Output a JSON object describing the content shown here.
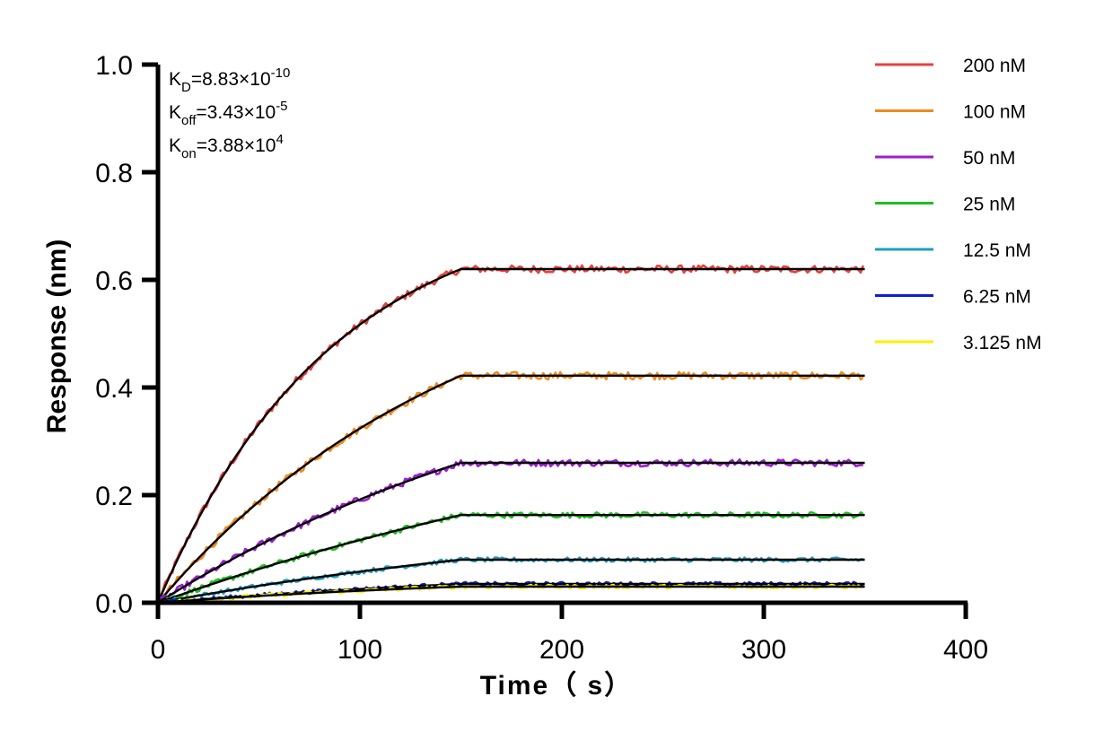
{
  "chart_data": {
    "type": "line",
    "xlabel": "Time（ s）",
    "ylabel": "Response (nm)",
    "xlim": [
      0,
      400
    ],
    "ylim": [
      0,
      1.0
    ],
    "x_ticks": [
      "0",
      "100",
      "200",
      "300",
      "400"
    ],
    "y_ticks": [
      "0.0",
      "0.2",
      "0.4",
      "0.6",
      "0.8",
      "1.0"
    ],
    "grid": false,
    "legend_position": "top-right",
    "fit_color": "#000000",
    "association_end": 150,
    "time_end": 350,
    "annotations": [
      {
        "base": "K",
        "sub": "D",
        "eq": "=8.83×10",
        "sup": "-10"
      },
      {
        "base": "K",
        "sub": "off",
        "eq": "=3.43×10",
        "sup": "-5"
      },
      {
        "base": "K",
        "sub": "on",
        "eq": "=3.88×10",
        "sup": "4"
      }
    ],
    "series": [
      {
        "name": "200 nM",
        "color": "#e8413c",
        "plateau": 0.62,
        "k": 0.0117
      },
      {
        "name": "100 nM",
        "color": "#f08a1c",
        "plateau": 0.422,
        "k": 0.0065
      },
      {
        "name": "50 nM",
        "color": "#9b1fcf",
        "plateau": 0.26,
        "k": 0.0045
      },
      {
        "name": "25 nM",
        "color": "#1fbf1f",
        "plateau": 0.163,
        "k": 0.003
      },
      {
        "name": "12.5 nM",
        "color": "#1f9fbf",
        "plateau": 0.08,
        "k": 0.0035
      },
      {
        "name": "6.25 nM",
        "color": "#0a1fd6",
        "plateau": 0.035,
        "k": 0.004
      },
      {
        "name": "3.125 nM",
        "color": "#ffee00",
        "plateau": 0.03,
        "k": 0.005
      }
    ]
  }
}
